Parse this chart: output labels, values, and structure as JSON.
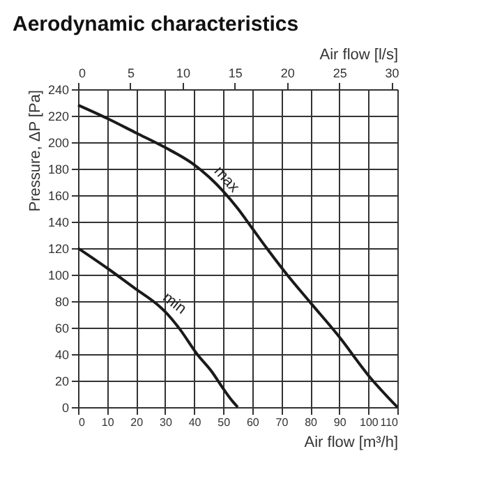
{
  "chart_data": {
    "type": "line",
    "title": "Aerodynamic characteristics",
    "xlabel": "Air flow [m³/h]",
    "x2label": "Air flow [l/s]",
    "ylabel": "Pressure, ΔP [Pa]",
    "xlim": [
      0,
      110
    ],
    "xticks": [
      0,
      10,
      20,
      30,
      40,
      50,
      60,
      70,
      80,
      90,
      100,
      110
    ],
    "x2lim": [
      0,
      30.56
    ],
    "x2ticks": [
      0,
      5,
      10,
      15,
      20,
      25,
      30
    ],
    "ylim": [
      0,
      240
    ],
    "yticks": [
      0,
      20,
      40,
      60,
      80,
      100,
      120,
      140,
      160,
      180,
      200,
      220,
      240
    ],
    "grid": true,
    "line_style": "solid",
    "marker": "none",
    "series": [
      {
        "color": "#1a1a1a",
        "x": [
          0,
          10,
          20,
          30,
          40,
          45,
          50,
          55,
          60,
          65,
          72,
          80,
          90,
          100,
          110
        ],
        "values": [
          228,
          218,
          207,
          196,
          183,
          174,
          163,
          150,
          135,
          120,
          100,
          79,
          53,
          24,
          0
        ]
      },
      {
        "color": "#1a1a1a",
        "x": [
          0,
          10,
          20,
          27,
          30,
          35,
          41,
          46,
          50,
          53,
          55
        ],
        "values": [
          120,
          105,
          89,
          78,
          72,
          59,
          40,
          27,
          14,
          5,
          0
        ]
      }
    ],
    "annotations": [
      {
        "text": "max",
        "x": 45,
        "y": 174
      },
      {
        "text": "min",
        "x": 27,
        "y": 78
      }
    ]
  }
}
